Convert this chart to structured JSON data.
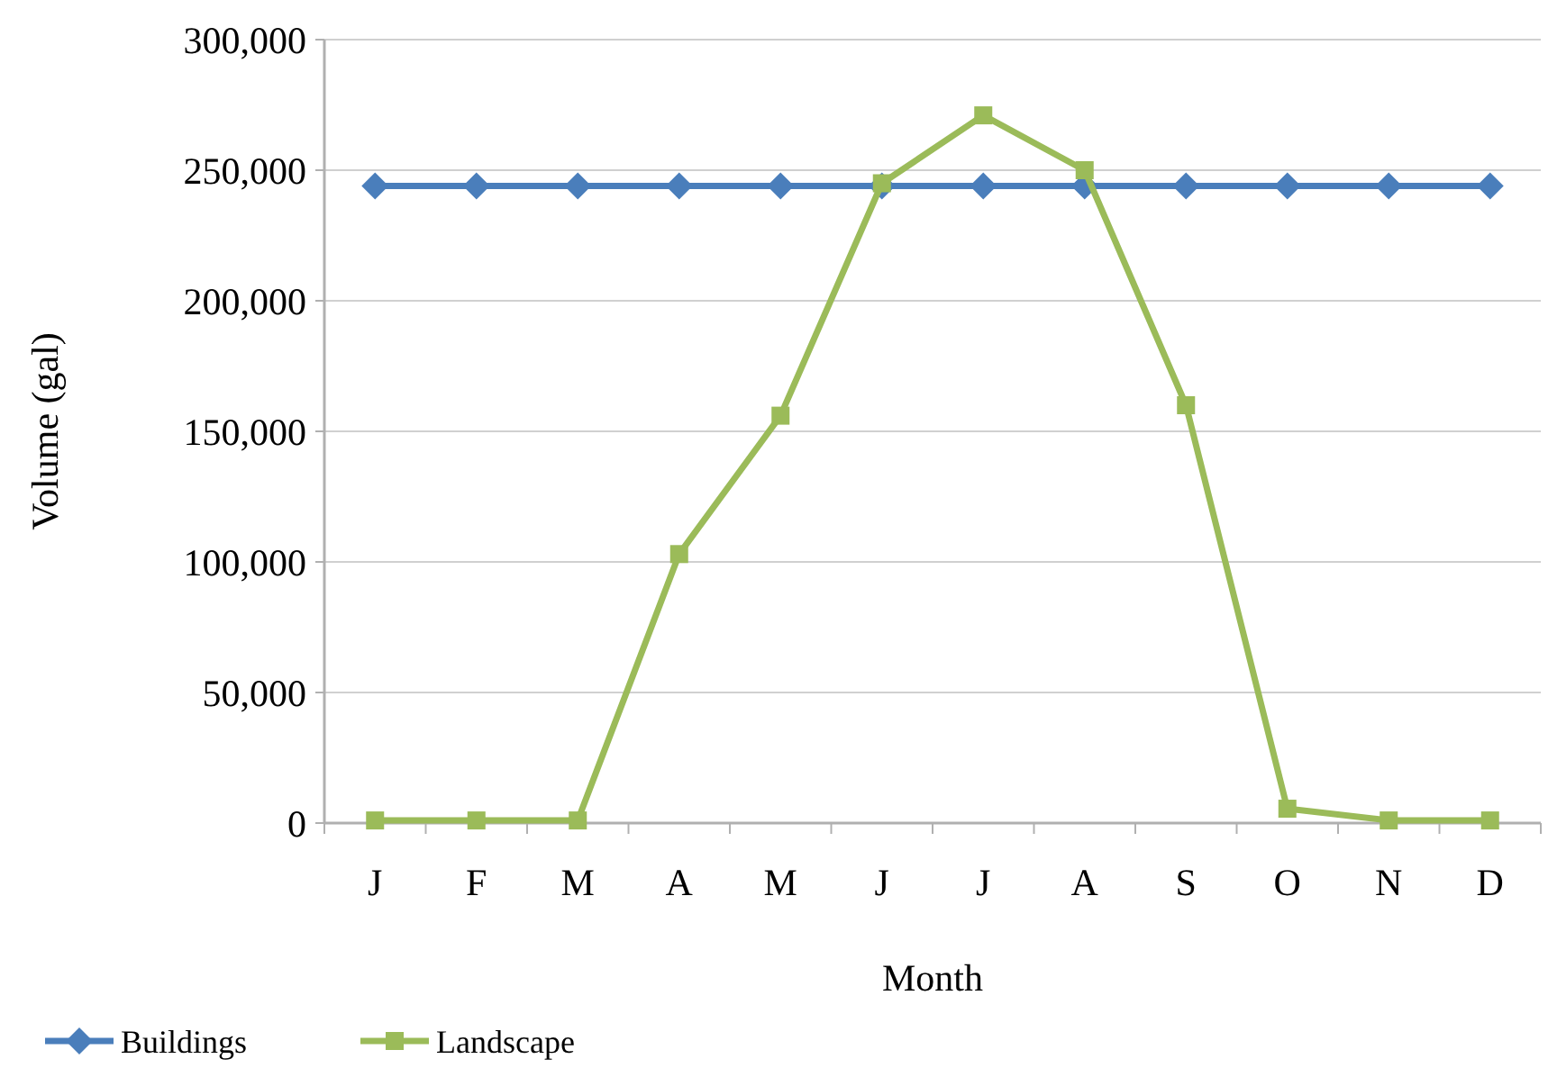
{
  "chart_data": {
    "type": "line",
    "xlabel": "Month",
    "ylabel": "Volume (gal)",
    "categories": [
      "J",
      "F",
      "M",
      "A",
      "M",
      "J",
      "J",
      "A",
      "S",
      "O",
      "N",
      "D"
    ],
    "series": [
      {
        "name": "Buildings",
        "color": "#4a7ebb",
        "marker": "diamond",
        "values": [
          244000,
          244000,
          244000,
          244000,
          244000,
          244000,
          244000,
          244000,
          244000,
          244000,
          244000,
          244000
        ]
      },
      {
        "name": "Landscape",
        "color": "#9bbb59",
        "marker": "square",
        "values": [
          1000,
          1000,
          1000,
          103000,
          156000,
          245000,
          271000,
          250000,
          160000,
          5500,
          1000,
          1000
        ]
      }
    ],
    "ylim": [
      0,
      300000
    ],
    "yticks": [
      {
        "value": 0,
        "label": "0"
      },
      {
        "value": 50000,
        "label": "50,000"
      },
      {
        "value": 100000,
        "label": "100,000"
      },
      {
        "value": 150000,
        "label": "150,000"
      },
      {
        "value": 200000,
        "label": "200,000"
      },
      {
        "value": 250000,
        "label": "250,000"
      },
      {
        "value": 300000,
        "label": "300,000"
      }
    ],
    "grid": "y",
    "legend": "bottom"
  }
}
